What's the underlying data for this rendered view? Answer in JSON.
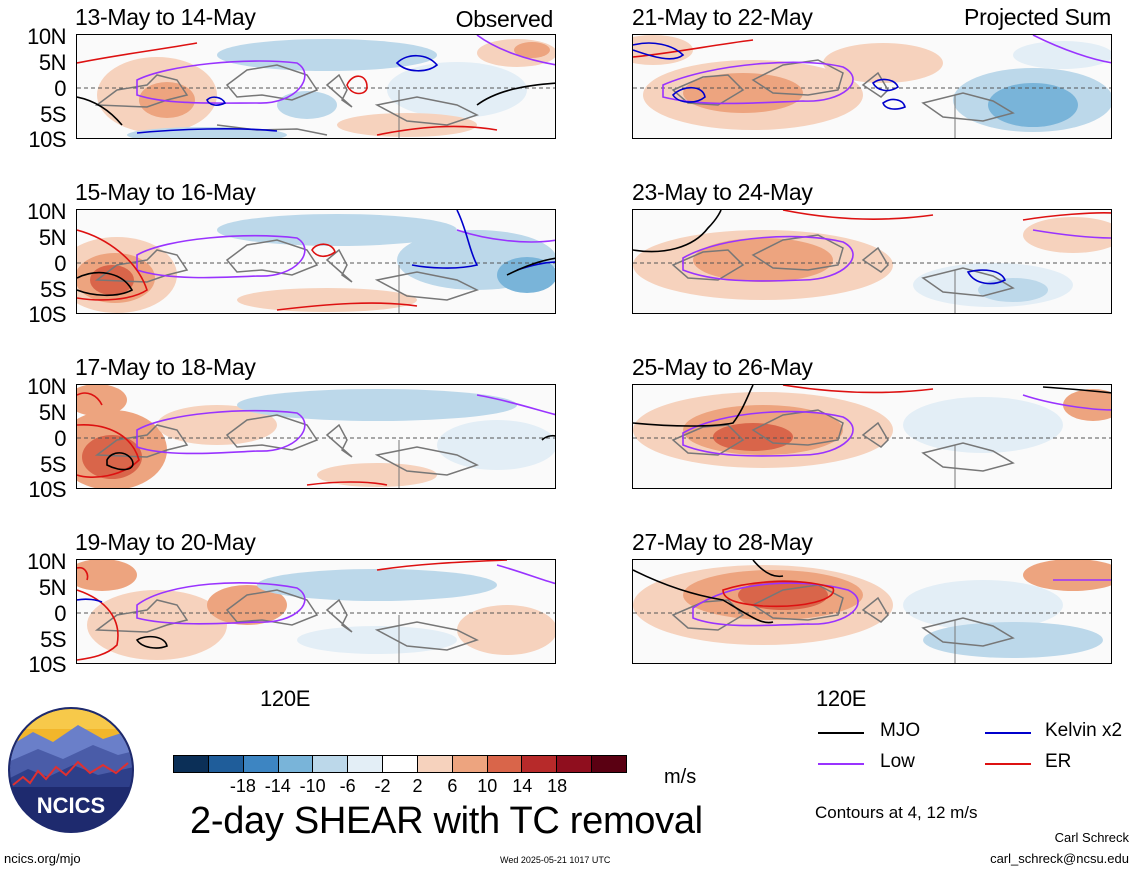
{
  "panels": [
    {
      "title": "13-May to 14-May",
      "corner": "Observed"
    },
    {
      "title": "21-May to 22-May",
      "corner": "Projected Sum"
    },
    {
      "title": "15-May to 16-May",
      "corner": ""
    },
    {
      "title": "23-May to 24-May",
      "corner": ""
    },
    {
      "title": "17-May to 18-May",
      "corner": ""
    },
    {
      "title": "25-May to 26-May",
      "corner": ""
    },
    {
      "title": "19-May to 20-May",
      "corner": ""
    },
    {
      "title": "27-May to 28-May",
      "corner": ""
    }
  ],
  "y_labels": [
    "10N",
    "5N",
    "0",
    "5S",
    "10S"
  ],
  "x_label": "120E",
  "colorbar": {
    "ticks": [
      "-18",
      "-14",
      "-10",
      "-6",
      "-2",
      "2",
      "6",
      "10",
      "14",
      "18"
    ],
    "colors": [
      "#0b2f57",
      "#1f5d9a",
      "#3d85c2",
      "#79b4d9",
      "#bcd8ea",
      "#e3eef6",
      "#ffffff",
      "#f6d2bd",
      "#eda47f",
      "#d9654a",
      "#b72a2a",
      "#8f0e1e",
      "#5a0012"
    ],
    "unit": "m/s"
  },
  "title": "2-day SHEAR with TC removal",
  "legend": [
    {
      "label": "MJO",
      "color": "#000000"
    },
    {
      "label": "Kelvin x2",
      "color": "#0000cc"
    },
    {
      "label": "Low",
      "color": "#9933ff"
    },
    {
      "label": "ER",
      "color": "#dd1111"
    }
  ],
  "contour_note": "Contours at 4, 12 m/s",
  "author": "Carl Schreck",
  "email": "carl_schreck@ncsu.edu",
  "url": "ncics.org/mjo",
  "timestamp": "Wed 2025-05-21 1017 UTC",
  "logo_text": "NCICS"
}
